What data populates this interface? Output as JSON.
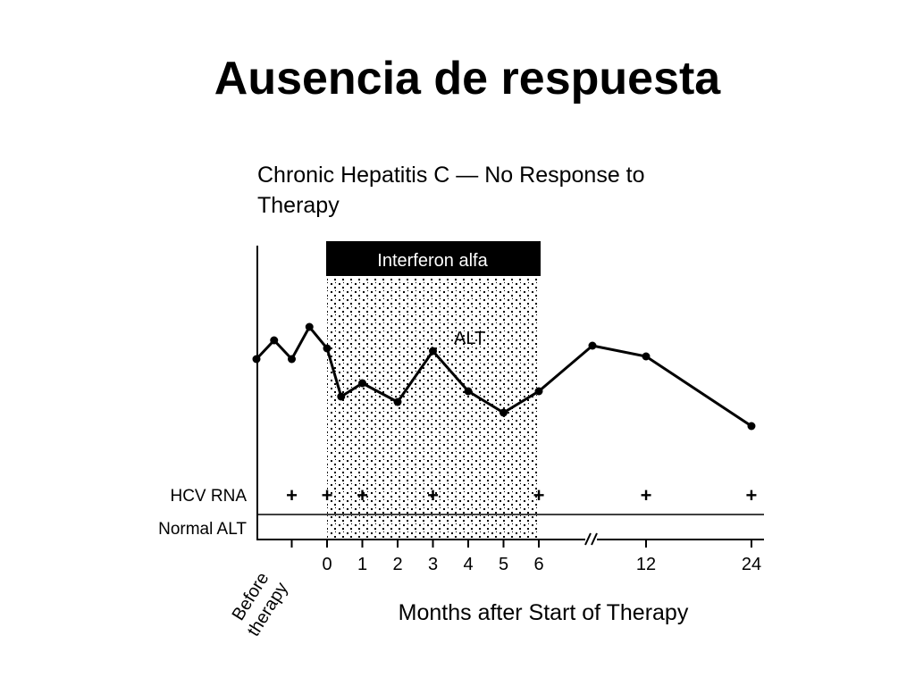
{
  "slide": {
    "title": "Ausencia de respuesta"
  },
  "chart_data": {
    "type": "line",
    "title_lines": [
      "Chronic Hepatitis C — No Response to",
      "Therapy"
    ],
    "xlabel": "Months after Start of Therapy",
    "before_label_lines": [
      "Before",
      "therapy"
    ],
    "treatment_band": {
      "label": "Interferon alfa",
      "from_month": 0,
      "to_month": 6
    },
    "x_ticks": [
      {
        "label": "",
        "value": -1
      },
      {
        "label": "0",
        "value": 0
      },
      {
        "label": "1",
        "value": 1
      },
      {
        "label": "2",
        "value": 2
      },
      {
        "label": "3",
        "value": 3
      },
      {
        "label": "4",
        "value": 4
      },
      {
        "label": "5",
        "value": 5
      },
      {
        "label": "6",
        "value": 6
      },
      {
        "label": "12",
        "value": 12
      },
      {
        "label": "24",
        "value": 24
      }
    ],
    "axis_break_between": [
      6,
      12
    ],
    "series": [
      {
        "name": "ALT",
        "points": [
          {
            "x": -2.0,
            "y": 5.8
          },
          {
            "x": -1.5,
            "y": 6.5
          },
          {
            "x": -1.0,
            "y": 5.8
          },
          {
            "x": -0.5,
            "y": 7.0
          },
          {
            "x": 0.0,
            "y": 6.2
          },
          {
            "x": 0.4,
            "y": 4.4
          },
          {
            "x": 1.0,
            "y": 4.9
          },
          {
            "x": 2.0,
            "y": 4.2
          },
          {
            "x": 3.0,
            "y": 6.1
          },
          {
            "x": 4.0,
            "y": 4.6
          },
          {
            "x": 5.0,
            "y": 3.8
          },
          {
            "x": 6.0,
            "y": 4.6
          },
          {
            "x": 9.0,
            "y": 6.3
          },
          {
            "x": 12.0,
            "y": 5.9
          },
          {
            "x": 24.0,
            "y": 3.3
          }
        ]
      }
    ],
    "hcv_rna": {
      "label": "HCV RNA",
      "marker": "+",
      "at_months": [
        -1,
        0,
        1,
        3,
        6,
        12,
        24
      ]
    },
    "normal_alt": {
      "label": "Normal ALT",
      "level": 0
    },
    "ylim": [
      -1,
      12
    ]
  }
}
